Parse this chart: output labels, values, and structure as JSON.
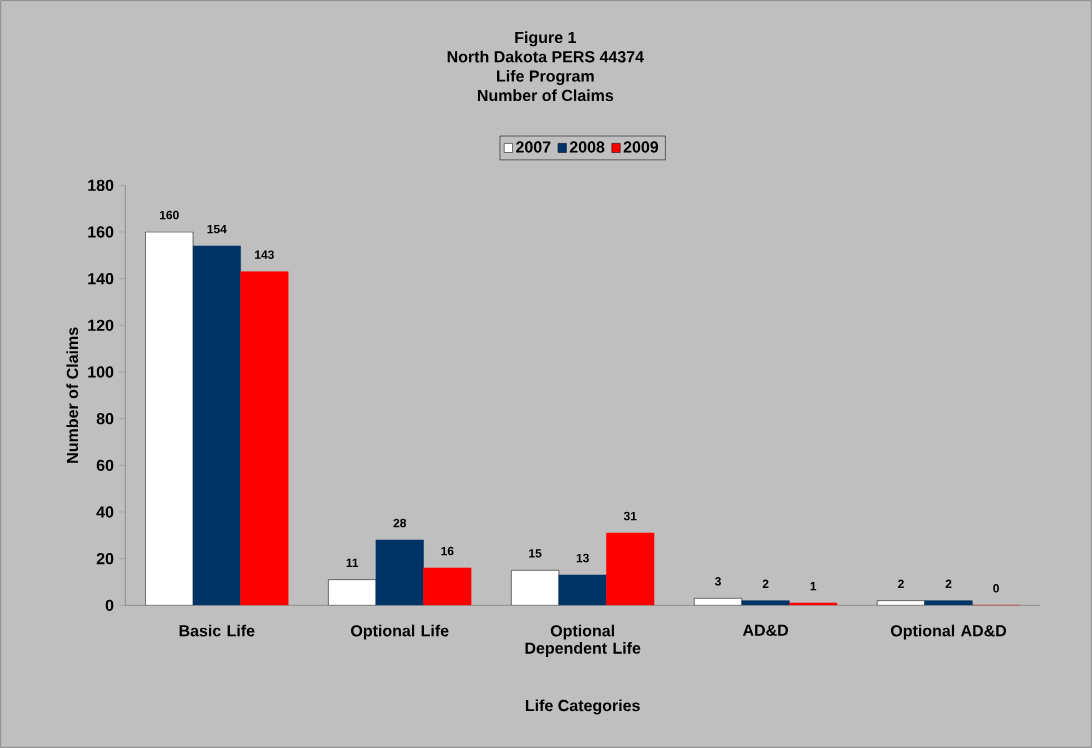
{
  "chart_data": {
    "type": "bar",
    "title": "Figure 1\nNorth Dakota PERS 44374\nLife Program\nNumber of Claims",
    "categories": [
      "Basic Life",
      "Optional Life",
      "Optional Dependent Life",
      "AD&D",
      "Optional AD&D"
    ],
    "series": [
      {
        "name": "2007",
        "color": "#ffffff",
        "values": [
          160,
          11,
          15,
          3,
          2
        ]
      },
      {
        "name": "2008",
        "color": "#003366",
        "values": [
          154,
          28,
          13,
          2,
          2
        ]
      },
      {
        "name": "2009",
        "color": "#ff0000",
        "values": [
          143,
          16,
          31,
          1,
          0
        ]
      }
    ],
    "xlabel": "Life Categories",
    "ylabel": "Number of Claims",
    "ylim": [
      0,
      180
    ],
    "yticks": [
      0,
      20,
      40,
      60,
      80,
      100,
      120,
      140,
      160,
      180
    ],
    "legend": "top",
    "data_labels": true
  }
}
